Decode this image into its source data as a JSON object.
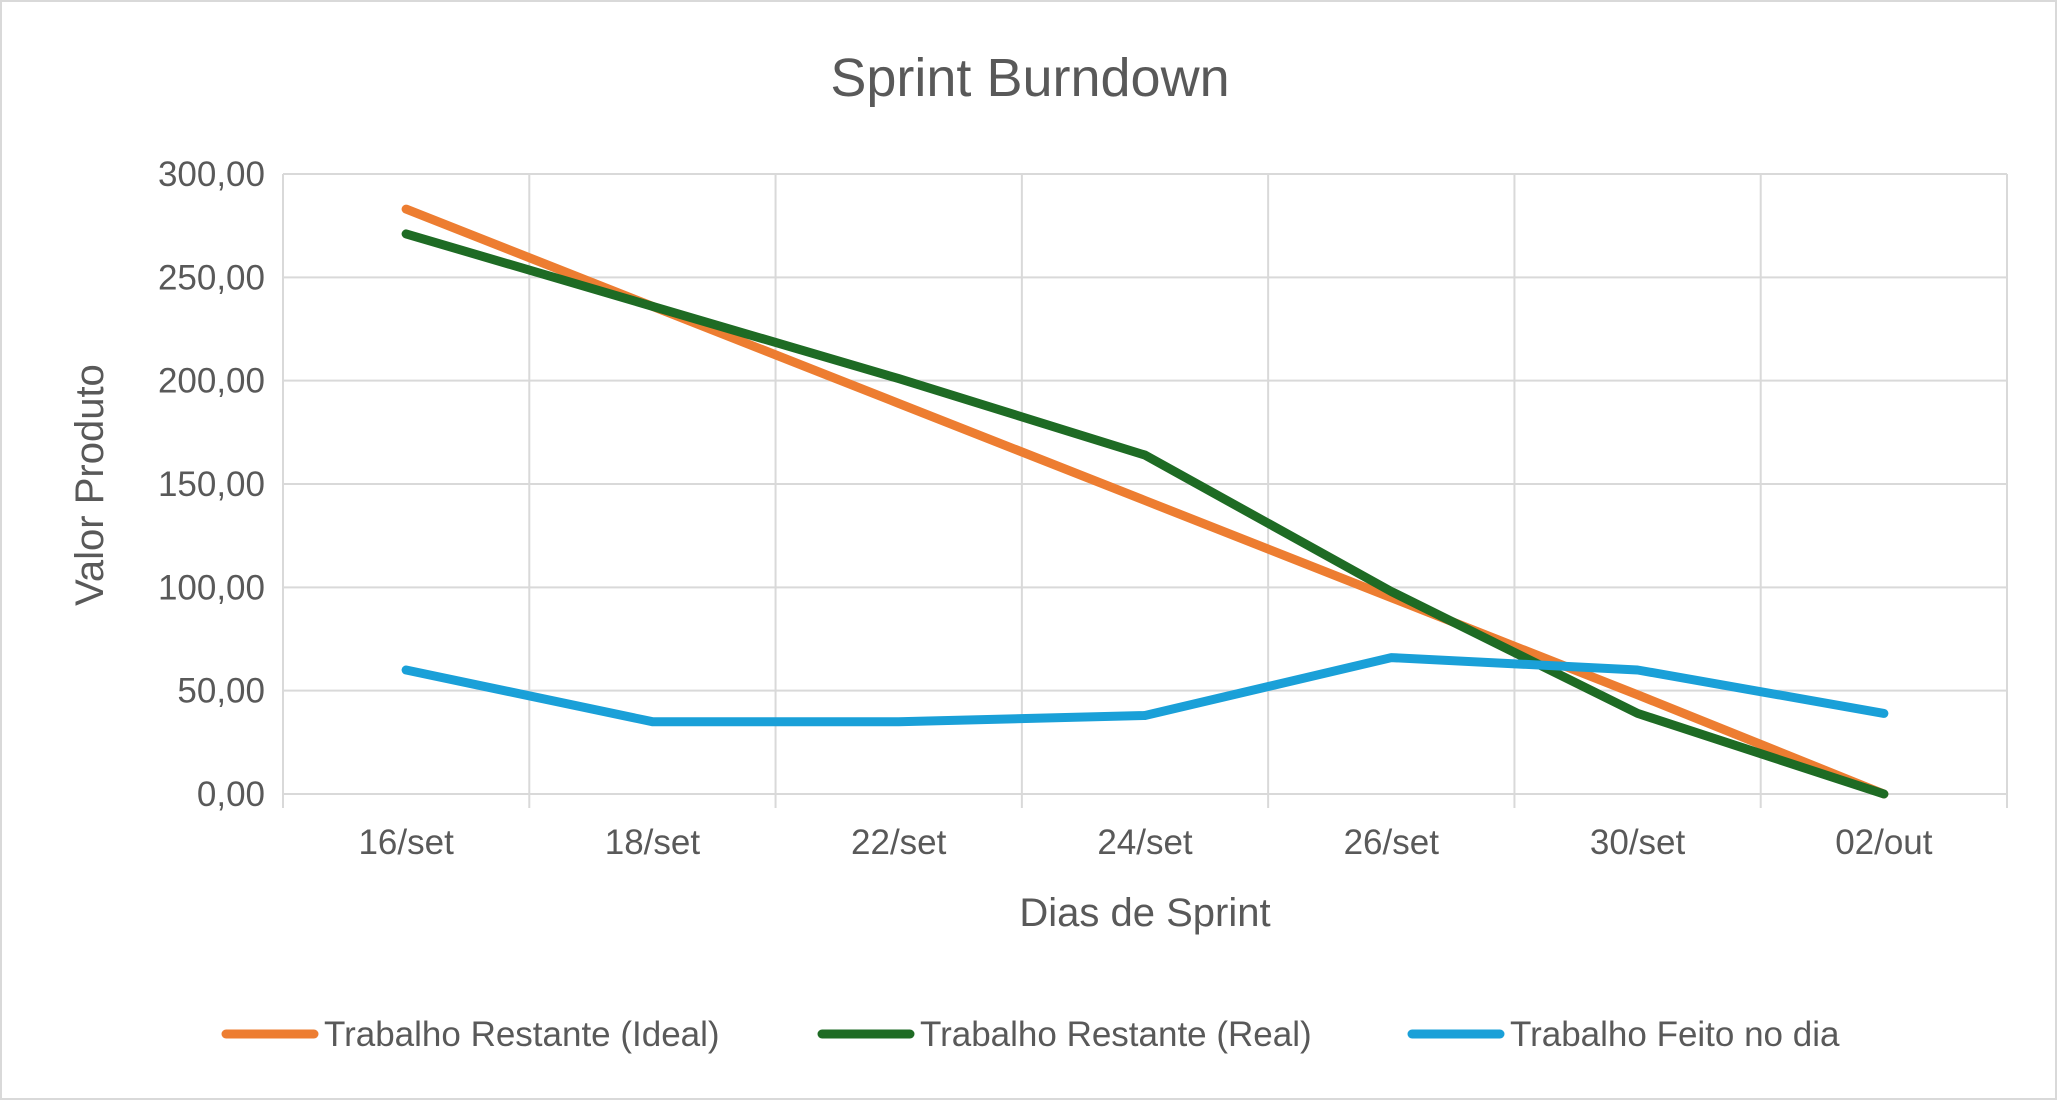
{
  "chart_data": {
    "type": "line",
    "title": "Sprint Burndown",
    "xlabel": "Dias de Sprint",
    "ylabel": "Valor Produto",
    "categories": [
      "16/set",
      "18/set",
      "22/set",
      "24/set",
      "26/set",
      "30/set",
      "02/out"
    ],
    "ylim": [
      0,
      300
    ],
    "yticks": [
      "0,00",
      "50,00",
      "100,00",
      "150,00",
      "200,00",
      "250,00",
      "300,00"
    ],
    "grid": true,
    "legend_position": "bottom",
    "series": [
      {
        "name": "Trabalho Restante (Ideal)",
        "color": "#ED7D31",
        "values": [
          283,
          236,
          189,
          142,
          95,
          48,
          0
        ]
      },
      {
        "name": "Trabalho Restante (Real)",
        "color": "#1E6B24",
        "values": [
          271,
          236,
          201,
          164,
          98,
          39,
          0
        ]
      },
      {
        "name": "Trabalho Feito no dia",
        "color": "#1AA0D8",
        "values": [
          60,
          35,
          35,
          38,
          66,
          60,
          39
        ]
      }
    ]
  }
}
